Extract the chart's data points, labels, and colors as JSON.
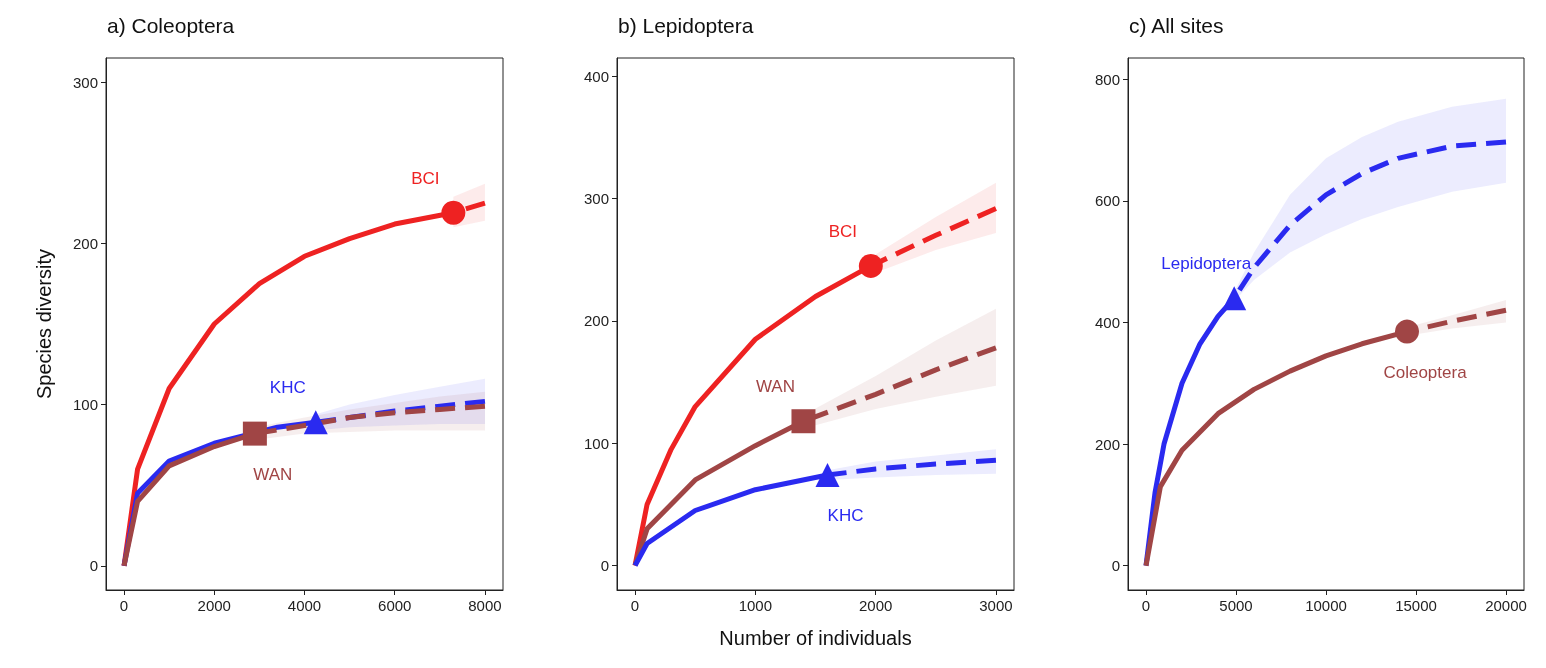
{
  "chart_data": [
    {
      "type": "line",
      "title": "a) Coleoptera",
      "ylabel": "Species diversity",
      "xlim": [
        -400,
        8400
      ],
      "ylim": [
        -15,
        315
      ],
      "xticks": [
        0,
        2000,
        4000,
        6000,
        8000
      ],
      "yticks": [
        0,
        100,
        200,
        300
      ],
      "grid": false,
      "legend": false,
      "series": [
        {
          "name": "BCI",
          "color": "#ee2222",
          "line_style": "solid",
          "x": [
            0,
            300,
            1000,
            2000,
            3000,
            4000,
            5000,
            6000,
            7300
          ],
          "values": [
            0,
            60,
            110,
            150,
            175,
            192,
            203,
            212,
            219
          ]
        },
        {
          "color": "#ee2222",
          "line_style": "dashed",
          "x": [
            7300,
            8000
          ],
          "values": [
            219,
            225
          ],
          "lower": [
            210,
            214
          ],
          "upper": [
            229,
            237
          ]
        },
        {
          "type": "scatter",
          "color": "#ee2222",
          "marker": "circle",
          "x": [
            7300
          ],
          "values": [
            219
          ]
        },
        {
          "name": "KHC",
          "color": "#2a2af0",
          "line_style": "solid",
          "x": [
            0,
            300,
            1000,
            2000,
            3400,
            4250
          ],
          "values": [
            0,
            45,
            65,
            76,
            86,
            89
          ]
        },
        {
          "color": "#2a2af0",
          "line_style": "dashed",
          "x": [
            4250,
            5000,
            6000,
            7000,
            8000
          ],
          "values": [
            89,
            92,
            96,
            99,
            102
          ],
          "lower": [
            84,
            86,
            87,
            88,
            88
          ],
          "upper": [
            94,
            100,
            106,
            111,
            116
          ]
        },
        {
          "type": "scatter",
          "color": "#2a2af0",
          "marker": "triangle",
          "x": [
            4250
          ],
          "values": [
            89
          ]
        },
        {
          "name": "WAN",
          "color": "#a04545",
          "line_style": "solid",
          "x": [
            0,
            300,
            1000,
            2000,
            2900
          ],
          "values": [
            0,
            40,
            62,
            74,
            82
          ]
        },
        {
          "color": "#a04545",
          "line_style": "dashed",
          "x": [
            2900,
            4000,
            5000,
            6000,
            7000,
            8000
          ],
          "values": [
            82,
            87,
            92,
            95,
            97,
            99
          ],
          "lower": [
            78,
            82,
            83,
            84,
            84,
            84
          ],
          "upper": [
            86,
            92,
            97,
            101,
            105,
            108
          ]
        },
        {
          "type": "scatter",
          "color": "#a04545",
          "marker": "square",
          "x": [
            2900
          ],
          "values": [
            82
          ]
        }
      ]
    },
    {
      "type": "line",
      "title": "b) Lepidoptera",
      "xlabel": "Number of individuals",
      "xlim": [
        -150,
        3150
      ],
      "ylim": [
        -20,
        415
      ],
      "xticks": [
        0,
        1000,
        2000,
        3000
      ],
      "yticks": [
        0,
        100,
        200,
        300,
        400
      ],
      "grid": false,
      "legend": false,
      "series": [
        {
          "name": "BCI",
          "color": "#ee2222",
          "line_style": "solid",
          "x": [
            0,
            100,
            300,
            500,
            1000,
            1500,
            1960
          ],
          "values": [
            0,
            50,
            95,
            130,
            185,
            220,
            245
          ]
        },
        {
          "color": "#ee2222",
          "line_style": "dashed",
          "x": [
            1960,
            2500,
            3000
          ],
          "values": [
            245,
            270,
            292
          ],
          "lower": [
            238,
            258,
            272
          ],
          "upper": [
            252,
            285,
            313
          ]
        },
        {
          "type": "scatter",
          "color": "#ee2222",
          "marker": "circle",
          "x": [
            1960
          ],
          "values": [
            245
          ]
        },
        {
          "name": "WAN",
          "color": "#a04545",
          "line_style": "solid",
          "x": [
            0,
            100,
            500,
            1000,
            1400
          ],
          "values": [
            0,
            30,
            70,
            98,
            118
          ]
        },
        {
          "color": "#a04545",
          "line_style": "dashed",
          "x": [
            1400,
            2000,
            2500,
            3000
          ],
          "values": [
            118,
            140,
            160,
            178
          ],
          "lower": [
            112,
            128,
            138,
            147
          ],
          "upper": [
            123,
            155,
            184,
            210
          ]
        },
        {
          "type": "scatter",
          "color": "#a04545",
          "marker": "square",
          "x": [
            1400
          ],
          "values": [
            118
          ]
        },
        {
          "name": "KHC",
          "color": "#2a2af0",
          "line_style": "solid",
          "x": [
            0,
            100,
            500,
            1000,
            1600
          ],
          "values": [
            0,
            18,
            45,
            62,
            74
          ]
        },
        {
          "color": "#2a2af0",
          "line_style": "dashed",
          "x": [
            1600,
            2000,
            2500,
            3000
          ],
          "values": [
            74,
            79,
            83,
            86
          ],
          "lower": [
            70,
            72,
            74,
            75
          ],
          "upper": [
            78,
            85,
            90,
            95
          ]
        },
        {
          "type": "scatter",
          "color": "#2a2af0",
          "marker": "triangle",
          "x": [
            1600
          ],
          "values": [
            74
          ]
        }
      ]
    },
    {
      "type": "line",
      "title": "c) All sites",
      "xlim": [
        -1000,
        21000
      ],
      "ylim": [
        -40,
        835
      ],
      "xticks": [
        0,
        5000,
        10000,
        15000,
        20000
      ],
      "yticks": [
        0,
        200,
        400,
        600,
        800
      ],
      "grid": false,
      "legend": false,
      "series": [
        {
          "name": "Lepidoptera",
          "color": "#2a2af0",
          "line_style": "solid",
          "x": [
            0,
            500,
            1000,
            2000,
            3000,
            4000,
            4900
          ],
          "values": [
            0,
            120,
            200,
            300,
            365,
            410,
            440
          ]
        },
        {
          "color": "#2a2af0",
          "line_style": "dashed",
          "x": [
            4900,
            6000,
            8000,
            10000,
            12000,
            14000,
            17000,
            20000
          ],
          "values": [
            440,
            490,
            560,
            610,
            645,
            670,
            690,
            697
          ],
          "lower": [
            435,
            470,
            515,
            545,
            570,
            590,
            615,
            630
          ],
          "upper": [
            450,
            515,
            610,
            670,
            705,
            730,
            755,
            768
          ]
        },
        {
          "type": "scatter",
          "color": "#2a2af0",
          "marker": "triangle",
          "x": [
            4900
          ],
          "values": [
            440
          ]
        },
        {
          "name": "Coleoptera",
          "color": "#a04545",
          "line_style": "solid",
          "x": [
            0,
            800,
            2000,
            4000,
            6000,
            8000,
            10000,
            12000,
            14500
          ],
          "values": [
            0,
            130,
            190,
            250,
            290,
            320,
            345,
            365,
            385
          ]
        },
        {
          "color": "#a04545",
          "line_style": "dashed",
          "x": [
            14500,
            17000,
            20000
          ],
          "values": [
            385,
            402,
            420
          ],
          "lower": [
            378,
            390,
            400
          ],
          "upper": [
            392,
            412,
            437
          ]
        },
        {
          "type": "scatter",
          "color": "#a04545",
          "marker": "circle",
          "x": [
            14500
          ],
          "values": [
            385
          ]
        }
      ]
    }
  ]
}
